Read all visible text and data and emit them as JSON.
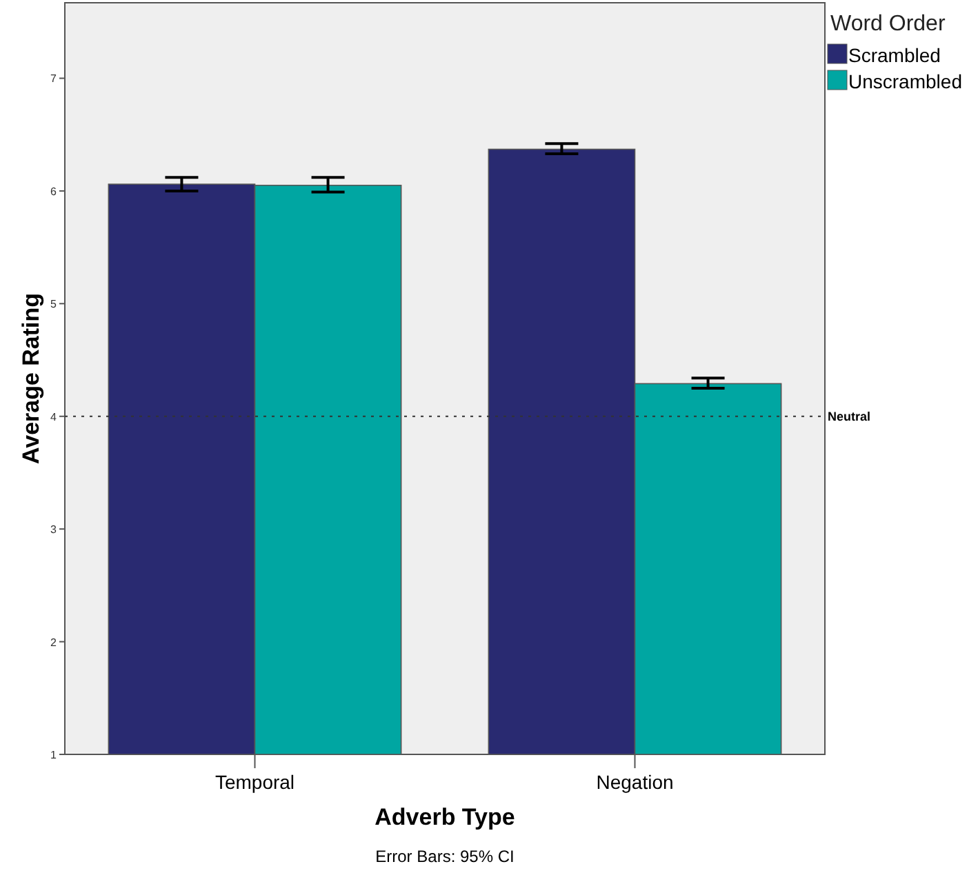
{
  "chart_data": {
    "type": "bar",
    "xlabel": "Adverb Type",
    "ylabel": "Average Rating",
    "legend_title": "Word Order",
    "categories": [
      "Temporal",
      "Negation"
    ],
    "series": [
      {
        "name": "Scrambled",
        "color": "#292a71",
        "values": [
          6.06,
          6.37
        ],
        "errors": [
          [
            6.0,
            6.12
          ],
          [
            6.33,
            6.42
          ]
        ]
      },
      {
        "name": "Unscrambled",
        "color": "#00a6a2",
        "values": [
          6.05,
          4.29
        ],
        "errors": [
          [
            5.99,
            6.12
          ],
          [
            4.25,
            4.34
          ]
        ]
      }
    ],
    "ylim": [
      1,
      7.67
    ],
    "yticks": [
      1,
      2,
      3,
      4,
      5,
      6,
      7
    ],
    "grid": false,
    "legend": "top right",
    "ref_lines": [
      {
        "axis": "y",
        "value": 4,
        "label": "Neutral",
        "line_style": "dotted"
      }
    ],
    "annotations": [
      "Error Bars: 95% CI"
    ]
  }
}
